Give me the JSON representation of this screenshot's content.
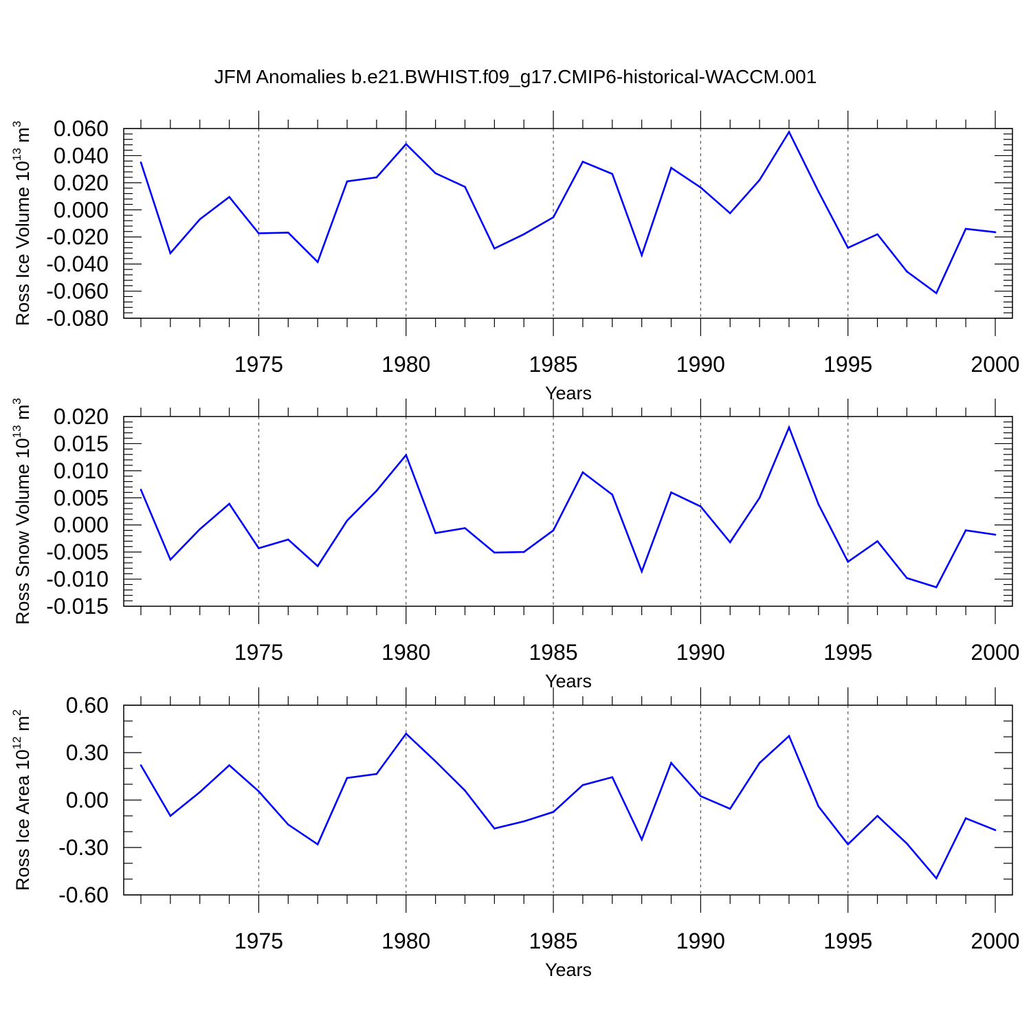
{
  "title": "JFM Anomalies b.e21.BWHIST.f09_g17.CMIP6-historical-WACCM.001",
  "chart_data": [
    {
      "type": "line",
      "title": "JFM Anomalies b.e21.BWHIST.f09_g17.CMIP6-historical-WACCM.001",
      "xlabel": "Years",
      "ylabel": "Ross Ice Volume 10",
      "ylabel_exp": "13",
      "ylabel_unit": " m",
      "ylabel_unit_exp": "3",
      "xlim": [
        1971,
        2000
      ],
      "ylim": [
        -0.08,
        0.06
      ],
      "xticks": [
        1975,
        1980,
        1985,
        1990,
        1995,
        2000
      ],
      "yticks": [
        0.06,
        0.04,
        0.02,
        0.0,
        -0.02,
        -0.04,
        -0.06,
        -0.08
      ],
      "ytick_labels": [
        "0.060",
        "0.040",
        "0.020",
        "0.000",
        "-0.020",
        "-0.040",
        "-0.060",
        "-0.080"
      ],
      "grid": "vertical dashed at major x ticks",
      "line_color": "#0000ff",
      "x": [
        1971,
        1972,
        1973,
        1974,
        1975,
        1976,
        1977,
        1978,
        1979,
        1980,
        1981,
        1982,
        1983,
        1984,
        1985,
        1986,
        1987,
        1988,
        1989,
        1990,
        1991,
        1992,
        1993,
        1994,
        1995,
        1996,
        1997,
        1998,
        1999,
        2000
      ],
      "values": [
        0.035,
        -0.032,
        -0.007,
        0.0095,
        -0.0173,
        -0.0168,
        -0.0385,
        0.021,
        0.024,
        0.0485,
        0.027,
        0.017,
        -0.0285,
        -0.018,
        -0.0055,
        0.0355,
        0.0265,
        -0.0335,
        0.031,
        0.0165,
        -0.0025,
        0.022,
        0.0575,
        0.0135,
        -0.028,
        -0.018,
        -0.0455,
        -0.0615,
        -0.014,
        -0.0165
      ]
    },
    {
      "type": "line",
      "xlabel": "Years",
      "ylabel": "Ross Snow Volume 10",
      "ylabel_exp": "13",
      "ylabel_unit": " m",
      "ylabel_unit_exp": "3",
      "xlim": [
        1971,
        2000
      ],
      "ylim": [
        -0.015,
        0.02
      ],
      "xticks": [
        1975,
        1980,
        1985,
        1990,
        1995,
        2000
      ],
      "yticks": [
        0.02,
        0.015,
        0.01,
        0.005,
        0.0,
        -0.005,
        -0.01,
        -0.015
      ],
      "ytick_labels": [
        "0.020",
        "0.015",
        "0.010",
        "0.005",
        "0.000",
        "-0.005",
        "-0.010",
        "-0.015"
      ],
      "grid": "vertical dashed at major x ticks",
      "line_color": "#0000ff",
      "x": [
        1971,
        1972,
        1973,
        1974,
        1975,
        1976,
        1977,
        1978,
        1979,
        1980,
        1981,
        1982,
        1983,
        1984,
        1985,
        1986,
        1987,
        1988,
        1989,
        1990,
        1991,
        1992,
        1993,
        1994,
        1995,
        1996,
        1997,
        1998,
        1999,
        2000
      ],
      "values": [
        0.0065,
        -0.0064,
        -0.0008,
        0.0039,
        -0.0043,
        -0.0027,
        -0.0076,
        0.0008,
        0.0063,
        0.0129,
        -0.0015,
        -0.0006,
        -0.0051,
        -0.005,
        -0.001,
        0.0097,
        0.0056,
        -0.0086,
        0.006,
        0.0034,
        -0.0032,
        0.005,
        0.018,
        0.0038,
        -0.0068,
        -0.003,
        -0.0098,
        -0.0115,
        -0.001,
        -0.0018
      ]
    },
    {
      "type": "line",
      "xlabel": "Years",
      "ylabel": "Ross Ice Area 10",
      "ylabel_exp": "12",
      "ylabel_unit": " m",
      "ylabel_unit_exp": "2",
      "xlim": [
        1971,
        2000
      ],
      "ylim": [
        -0.6,
        0.6
      ],
      "xticks": [
        1975,
        1980,
        1985,
        1990,
        1995,
        2000
      ],
      "yticks": [
        0.6,
        0.3,
        0.0,
        -0.3,
        -0.6
      ],
      "ytick_labels": [
        "0.60",
        "0.30",
        "0.00",
        "-0.30",
        "-0.60"
      ],
      "grid": "vertical dashed at major x ticks",
      "line_color": "#0000ff",
      "x": [
        1971,
        1972,
        1973,
        1974,
        1975,
        1976,
        1977,
        1978,
        1979,
        1980,
        1981,
        1982,
        1983,
        1984,
        1985,
        1986,
        1987,
        1988,
        1989,
        1990,
        1991,
        1992,
        1993,
        1994,
        1995,
        1996,
        1997,
        1998,
        1999,
        2000
      ],
      "values": [
        0.22,
        -0.1,
        0.05,
        0.22,
        0.055,
        -0.155,
        -0.28,
        0.14,
        0.165,
        0.42,
        0.245,
        0.06,
        -0.18,
        -0.135,
        -0.075,
        0.095,
        0.145,
        -0.25,
        0.235,
        0.025,
        -0.055,
        0.235,
        0.405,
        -0.04,
        -0.28,
        -0.1,
        -0.275,
        -0.495,
        -0.115,
        -0.19
      ]
    }
  ]
}
